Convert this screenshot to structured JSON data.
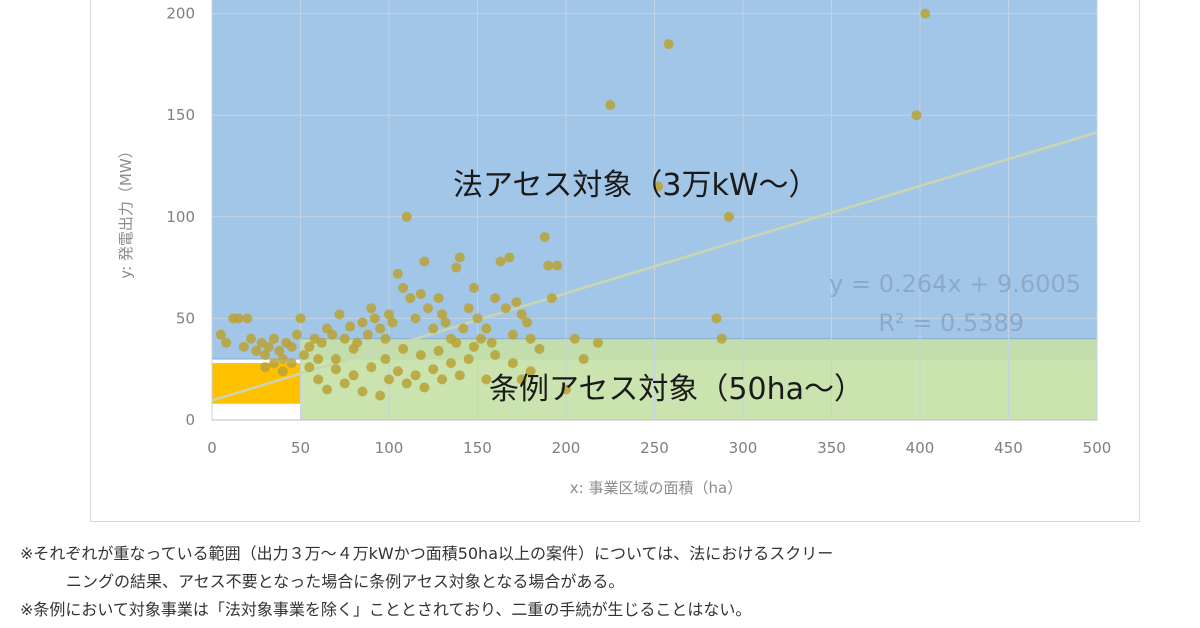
{
  "chart_data": {
    "type": "scatter",
    "xlabel": "x: 事業区域の面積（ha）",
    "ylabel": "y: 発電出力（MW）",
    "xlim": [
      0,
      500
    ],
    "ylim": [
      0,
      250
    ],
    "x_ticks": [
      "0",
      "50",
      "100",
      "150",
      "200",
      "250",
      "300",
      "350",
      "400",
      "450",
      "500"
    ],
    "y_ticks": [
      "0",
      "50",
      "100",
      "150",
      "200"
    ],
    "grid": true,
    "regions": [
      {
        "label": "法アセス対象（3万kW～）",
        "x_range": [
          0,
          500
        ],
        "y_range": [
          30,
          250
        ],
        "color": "#9dc3e6"
      },
      {
        "label": "条例アセス対象（50ha～）",
        "x_range": [
          50,
          500
        ],
        "y_range": [
          0,
          40
        ],
        "color": "#c5e0a5"
      },
      {
        "label": "",
        "x_range": [
          0,
          50
        ],
        "y_range": [
          8,
          28
        ],
        "color": "#ffc000"
      }
    ],
    "trendline": {
      "equation": "y = 0.264x + 9.6005",
      "r_squared": "R² = 0.5389",
      "slope": 0.264,
      "intercept": 9.6005,
      "color": "#c9d6b0"
    },
    "point_color": "#b8a236",
    "points": [
      [
        5,
        42
      ],
      [
        8,
        38
      ],
      [
        12,
        50
      ],
      [
        15,
        50
      ],
      [
        18,
        36
      ],
      [
        20,
        50
      ],
      [
        22,
        40
      ],
      [
        25,
        34
      ],
      [
        28,
        38
      ],
      [
        30,
        32
      ],
      [
        32,
        36
      ],
      [
        35,
        40
      ],
      [
        38,
        34
      ],
      [
        40,
        30
      ],
      [
        42,
        38
      ],
      [
        45,
        36
      ],
      [
        48,
        42
      ],
      [
        50,
        50
      ],
      [
        52,
        32
      ],
      [
        55,
        36
      ],
      [
        58,
        40
      ],
      [
        60,
        30
      ],
      [
        62,
        38
      ],
      [
        65,
        45
      ],
      [
        68,
        42
      ],
      [
        70,
        30
      ],
      [
        72,
        52
      ],
      [
        75,
        40
      ],
      [
        78,
        46
      ],
      [
        80,
        35
      ],
      [
        82,
        38
      ],
      [
        85,
        48
      ],
      [
        88,
        42
      ],
      [
        90,
        55
      ],
      [
        92,
        50
      ],
      [
        95,
        45
      ],
      [
        98,
        40
      ],
      [
        100,
        52
      ],
      [
        102,
        48
      ],
      [
        105,
        72
      ],
      [
        108,
        65
      ],
      [
        110,
        100
      ],
      [
        112,
        60
      ],
      [
        115,
        50
      ],
      [
        118,
        62
      ],
      [
        120,
        78
      ],
      [
        122,
        55
      ],
      [
        125,
        45
      ],
      [
        128,
        60
      ],
      [
        130,
        52
      ],
      [
        132,
        48
      ],
      [
        135,
        40
      ],
      [
        138,
        75
      ],
      [
        140,
        80
      ],
      [
        142,
        45
      ],
      [
        145,
        55
      ],
      [
        148,
        65
      ],
      [
        150,
        50
      ],
      [
        152,
        40
      ],
      [
        155,
        45
      ],
      [
        158,
        38
      ],
      [
        160,
        60
      ],
      [
        163,
        78
      ],
      [
        166,
        55
      ],
      [
        168,
        80
      ],
      [
        170,
        42
      ],
      [
        172,
        58
      ],
      [
        175,
        52
      ],
      [
        178,
        48
      ],
      [
        180,
        40
      ],
      [
        185,
        35
      ],
      [
        188,
        90
      ],
      [
        190,
        76
      ],
      [
        192,
        60
      ],
      [
        195,
        76
      ],
      [
        200,
        15
      ],
      [
        205,
        40
      ],
      [
        210,
        30
      ],
      [
        218,
        38
      ],
      [
        225,
        155
      ],
      [
        252,
        115
      ],
      [
        258,
        185
      ],
      [
        285,
        50
      ],
      [
        288,
        40
      ],
      [
        292,
        100
      ],
      [
        398,
        150
      ],
      [
        403,
        200
      ],
      [
        60,
        20
      ],
      [
        65,
        15
      ],
      [
        70,
        25
      ],
      [
        75,
        18
      ],
      [
        80,
        22
      ],
      [
        85,
        14
      ],
      [
        90,
        26
      ],
      [
        95,
        12
      ],
      [
        100,
        20
      ],
      [
        105,
        24
      ],
      [
        110,
        18
      ],
      [
        115,
        22
      ],
      [
        120,
        16
      ],
      [
        125,
        25
      ],
      [
        130,
        20
      ],
      [
        135,
        28
      ],
      [
        140,
        22
      ],
      [
        145,
        30
      ],
      [
        155,
        20
      ],
      [
        160,
        32
      ],
      [
        170,
        28
      ],
      [
        175,
        20
      ],
      [
        180,
        24
      ],
      [
        98,
        30
      ],
      [
        108,
        35
      ],
      [
        118,
        32
      ],
      [
        128,
        34
      ],
      [
        138,
        38
      ],
      [
        148,
        36
      ],
      [
        45,
        28
      ],
      [
        55,
        26
      ],
      [
        40,
        24
      ],
      [
        35,
        28
      ],
      [
        30,
        26
      ]
    ]
  },
  "notes": {
    "line1": "※それぞれが重なっている範囲（出力３万～４万kWかつ面積50ha以上の案件）については、法におけるスクリー",
    "line2": "ニングの結果、アセス不要となった場合に条例アセス対象となる場合がある。",
    "line3": "※条例において対象事業は「法対象事業を除く」こととされており、二重の手続が生じることはない。"
  }
}
